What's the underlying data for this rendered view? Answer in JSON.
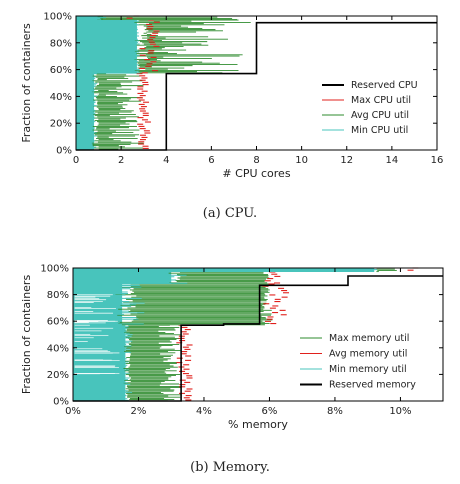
{
  "chart_data": [
    {
      "type": "line",
      "caption": "(a)  CPU.",
      "xlabel": "# CPU cores",
      "ylabel": "Fraction of containers",
      "xlim": [
        0,
        16
      ],
      "ylim": [
        0,
        100
      ],
      "xticks": [
        0,
        2,
        4,
        6,
        8,
        10,
        12,
        14,
        16
      ],
      "xtick_labels": [
        "0",
        "2",
        "4",
        "6",
        "8",
        "10",
        "12",
        "14",
        "16"
      ],
      "yticks": [
        0,
        20,
        40,
        60,
        80,
        100
      ],
      "ytick_labels": [
        "0%",
        "20%",
        "40%",
        "60%",
        "80%",
        "100%"
      ],
      "legend_position": "lower-right",
      "legend": [
        "Reserved CPU",
        "Max CPU util",
        "Avg CPU util",
        "Min CPU util"
      ],
      "colors": {
        "Reserved CPU": "#000000",
        "Max CPU util": "#e0201c",
        "Avg CPU util": "#2e8b2e",
        "Min CPU util": "#48c4bc"
      },
      "series": [
        {
          "name": "Reserved CPU",
          "x": [
            0,
            4,
            4,
            8,
            8,
            16
          ],
          "y": [
            0,
            0,
            57,
            57,
            95,
            95
          ]
        }
      ],
      "bands": [
        {
          "y_range": [
            0,
            57
          ],
          "min": 0.8,
          "avg_low": 1.3,
          "avg_high": 3.0,
          "max": 3.0
        },
        {
          "y_range": [
            57,
            97
          ],
          "min": 2.7,
          "avg_low": 3.1,
          "avg_high": 7.9,
          "max": 3.3
        },
        {
          "y_range": [
            97,
            100
          ],
          "min": 1.2,
          "avg_low": 3.0,
          "avg_high": 8.0,
          "max": 2.5
        }
      ]
    },
    {
      "type": "line",
      "caption": "(b)  Memory.",
      "xlabel": "% memory",
      "ylabel": "Fraction of containers",
      "xlim": [
        0,
        11.3
      ],
      "ylim": [
        0,
        100
      ],
      "xticks": [
        0,
        2,
        4,
        6,
        8,
        10
      ],
      "xtick_labels": [
        "0%",
        "2%",
        "4%",
        "6%",
        "8%",
        "10%"
      ],
      "yticks": [
        0,
        20,
        40,
        60,
        80,
        100
      ],
      "ytick_labels": [
        "0%",
        "20%",
        "40%",
        "60%",
        "80%",
        "100%"
      ],
      "legend_position": "lower-right",
      "legend": [
        "Max memory util",
        "Avg memory util",
        "Min memory util",
        "Reserved memory"
      ],
      "colors": {
        "Max memory util": "#2e8b2e",
        "Avg memory util": "#e0201c",
        "Min memory util": "#48c4bc",
        "Reserved memory": "#000000"
      },
      "series": [
        {
          "name": "Reserved memory",
          "x": [
            0,
            3.3,
            3.3,
            4.6,
            4.6,
            5.7,
            5.7,
            8.4,
            8.4,
            11.3
          ],
          "y": [
            0,
            0,
            57,
            57,
            58,
            58,
            87,
            87,
            94,
            94
          ]
        }
      ],
      "bands": [
        {
          "y_range": [
            0,
            57
          ],
          "min": 1.6,
          "avg_low": 2.6,
          "avg_high": 3.3,
          "max": 3.4
        },
        {
          "y_range": [
            57,
            88
          ],
          "min": 1.5,
          "avg_low": 5.7,
          "avg_high": 6.1,
          "max": 6.2
        },
        {
          "y_range": [
            88,
            97
          ],
          "min": 3.0,
          "avg_low": 5.8,
          "avg_high": 6.0,
          "max": 6.1
        },
        {
          "y_range": [
            97,
            100
          ],
          "min": 9.2,
          "avg_low": 9.3,
          "avg_high": 10.2,
          "max": 10.4
        }
      ]
    }
  ]
}
